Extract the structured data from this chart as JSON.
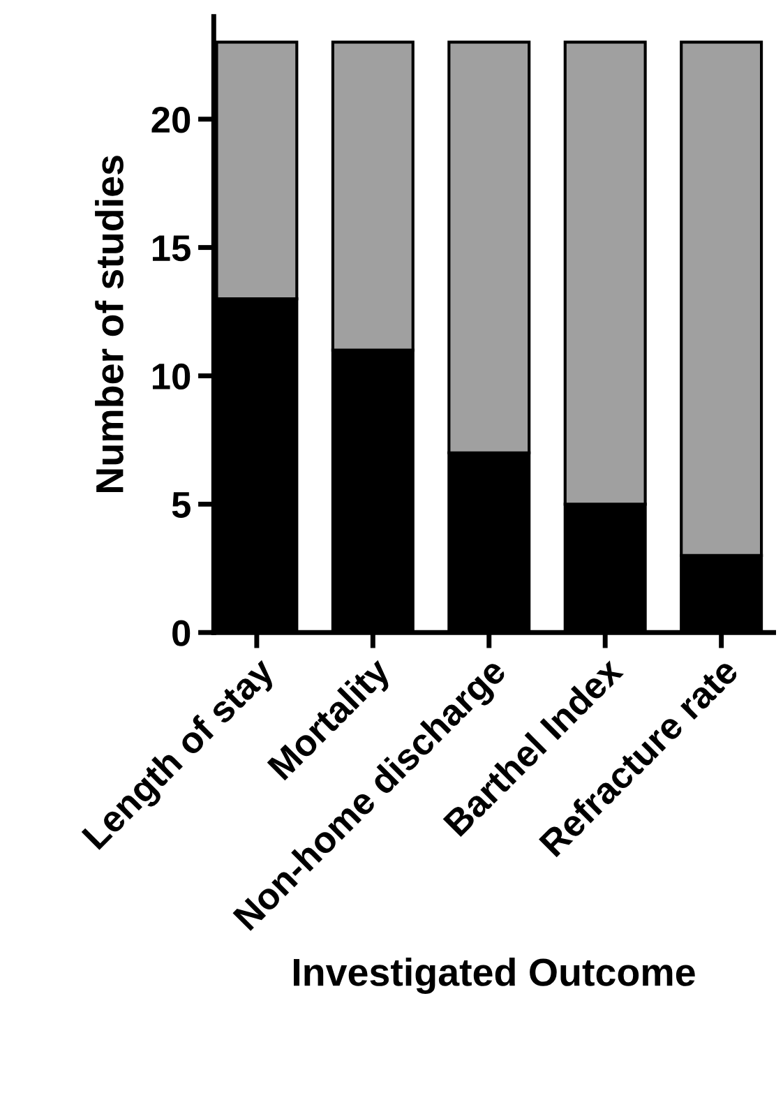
{
  "chart_data": {
    "type": "bar",
    "xlabel": "Investigated Outcome",
    "ylabel": "Number of studies",
    "categories": [
      "Length of stay",
      "Mortality",
      "Non-home discharge",
      "Barthel Index",
      "Refracture rate"
    ],
    "stacked": true,
    "series": [
      {
        "color": "#000000",
        "values": [
          13,
          11,
          7,
          5,
          3
        ]
      },
      {
        "color": "#a0a0a0",
        "values": [
          10,
          12,
          16,
          18,
          20
        ]
      }
    ],
    "ylim": [
      0,
      24
    ],
    "yticks": [
      0,
      5,
      10,
      15,
      20
    ],
    "grid": false,
    "legend": false
  }
}
